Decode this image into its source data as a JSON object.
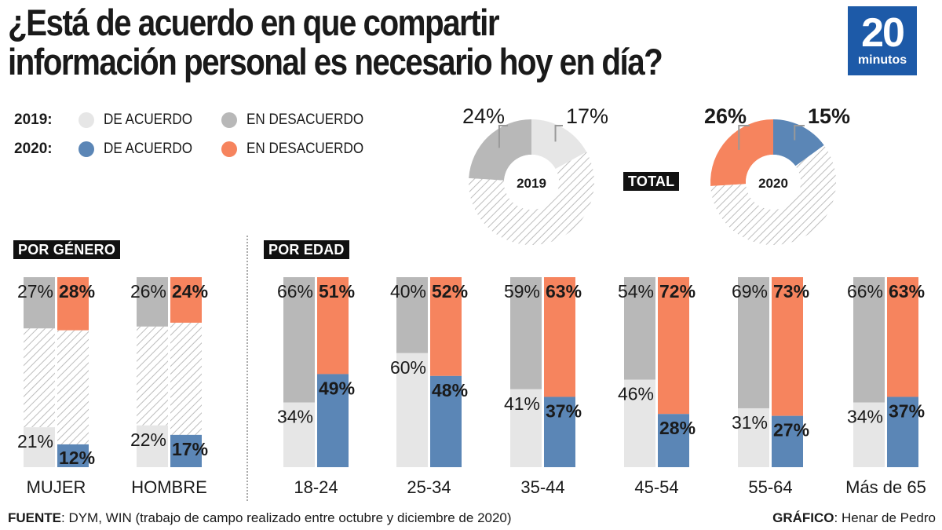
{
  "chart_data": {
    "type": "bar",
    "title": "¿Está de acuerdo en que compartir información personal es necesario hoy en día?",
    "brand": {
      "number": "20",
      "word": "minutos"
    },
    "legend": [
      {
        "year": "2019:",
        "items": [
          {
            "label": "DE ACUERDO",
            "color": "#e6e6e6"
          },
          {
            "label": "EN DESACUERDO",
            "color": "#b8b8b8"
          }
        ]
      },
      {
        "year": "2020:",
        "items": [
          {
            "label": "DE ACUERDO",
            "color": "#5b86b6"
          },
          {
            "label": "EN DESACUERDO",
            "color": "#f6845e"
          }
        ]
      }
    ],
    "colors": {
      "agree_2019": "#e6e6e6",
      "disagree_2019": "#b8b8b8",
      "agree_2020": "#5b86b6",
      "disagree_2020": "#f6845e",
      "neutral_hatch": "#c8c8c8"
    },
    "total": {
      "label": "TOTAL",
      "donuts": [
        {
          "year": "2019",
          "agree": 17,
          "disagree": 24,
          "agree_label": "17%",
          "disagree_label": "24%"
        },
        {
          "year": "2020",
          "agree": 15,
          "disagree": 26,
          "agree_label": "15%",
          "disagree_label": "26%"
        }
      ]
    },
    "by_gender": {
      "label": "POR GÉNERO",
      "categories": [
        "MUJER",
        "HOMBRE"
      ],
      "series": [
        {
          "name": "2019 en desacuerdo",
          "values": [
            27,
            26
          ]
        },
        {
          "name": "2019 de acuerdo",
          "values": [
            21,
            22
          ]
        },
        {
          "name": "2020 en desacuerdo",
          "values": [
            28,
            24
          ]
        },
        {
          "name": "2020 de acuerdo",
          "values": [
            12,
            17
          ]
        }
      ]
    },
    "by_age": {
      "label": "POR EDAD",
      "categories": [
        "18-24",
        "25-34",
        "35-44",
        "45-54",
        "55-64",
        "Más de 65"
      ],
      "series": [
        {
          "name": "2019 en desacuerdo",
          "values": [
            66,
            40,
            59,
            54,
            69,
            66
          ]
        },
        {
          "name": "2019 de acuerdo",
          "values": [
            34,
            60,
            41,
            46,
            31,
            34
          ]
        },
        {
          "name": "2020 en desacuerdo",
          "values": [
            51,
            52,
            63,
            72,
            73,
            63
          ]
        },
        {
          "name": "2020 de acuerdo",
          "values": [
            49,
            48,
            37,
            28,
            27,
            37
          ]
        }
      ]
    },
    "ylim": [
      0,
      100
    ],
    "footer": {
      "source_label": "FUENTE",
      "source_text": ": DYM, WIN (trabajo de campo realizado entre octubre y diciembre de 2020)",
      "credit_label": "GRÁFICO",
      "credit_text": ": Henar de Pedro"
    }
  }
}
